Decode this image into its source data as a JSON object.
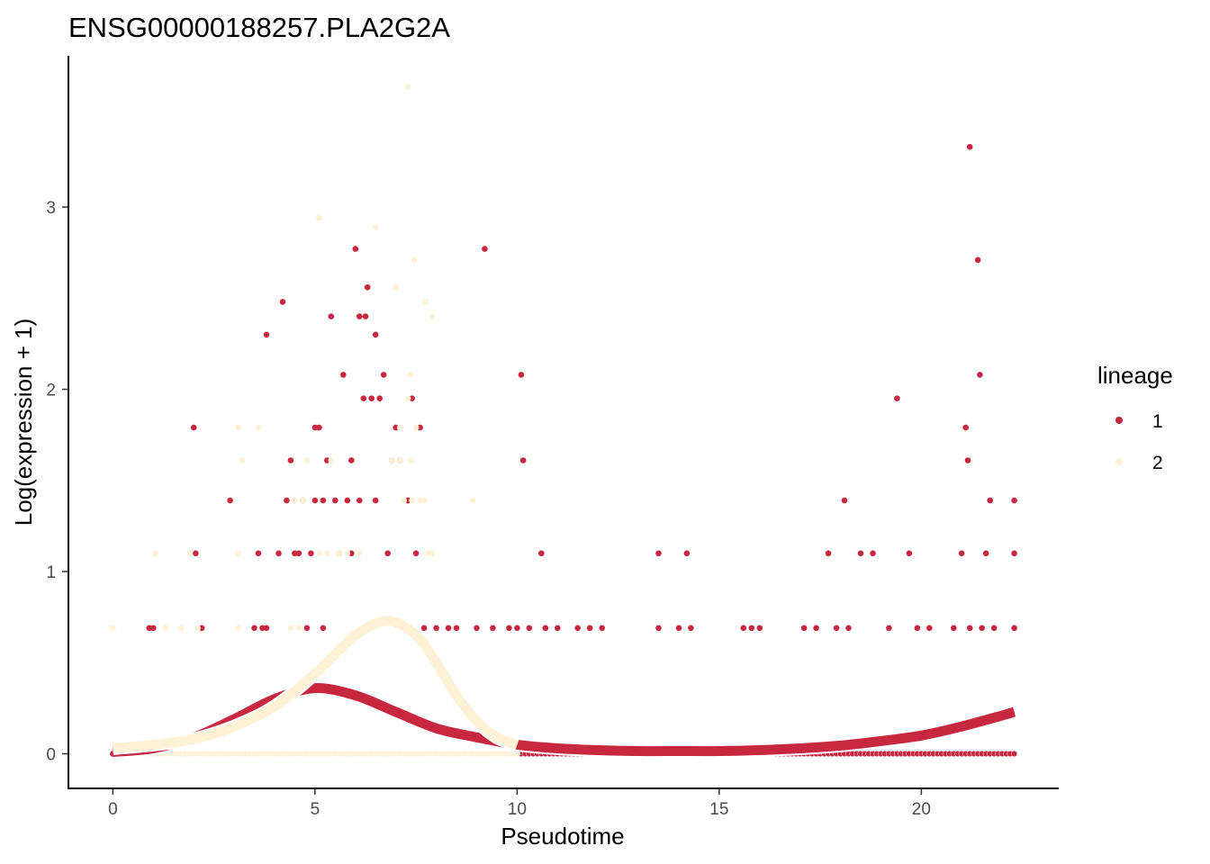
{
  "chart_data": {
    "type": "scatter",
    "title": "ENSG00000188257.PLA2G2A",
    "xlabel": "Pseudotime",
    "ylabel": "Log(expression + 1)",
    "xlim": [
      -1.1,
      23.4
    ],
    "ylim": [
      -0.19,
      3.83
    ],
    "xticks": [
      0,
      5,
      10,
      15,
      20
    ],
    "yticks": [
      0,
      1,
      2,
      3
    ],
    "grid": false,
    "legend": {
      "title": "lineage",
      "placement": "right",
      "entries": [
        {
          "label": "1",
          "color": "#C8283F"
        },
        {
          "label": "2",
          "color": "#FFF1D6"
        }
      ]
    },
    "series": [
      {
        "name": "1",
        "color": "#C8283F",
        "points": [
          [
            0,
            0
          ],
          [
            0.9,
            0.69
          ],
          [
            1.0,
            0.69
          ],
          [
            2.0,
            1.79
          ],
          [
            2.05,
            1.1
          ],
          [
            2.2,
            0.69
          ],
          [
            2.9,
            1.39
          ],
          [
            3.5,
            0.69
          ],
          [
            3.6,
            1.1
          ],
          [
            3.7,
            0.69
          ],
          [
            3.8,
            0.69
          ],
          [
            3.8,
            2.3
          ],
          [
            4.1,
            1.1
          ],
          [
            4.2,
            2.48
          ],
          [
            4.3,
            1.39
          ],
          [
            4.4,
            1.61
          ],
          [
            4.5,
            1.1
          ],
          [
            4.6,
            1.1
          ],
          [
            4.7,
            1.39
          ],
          [
            4.8,
            0.69
          ],
          [
            4.9,
            1.1
          ],
          [
            5.0,
            1.79
          ],
          [
            5.0,
            1.39
          ],
          [
            5.1,
            1.79
          ],
          [
            5.2,
            1.39
          ],
          [
            5.2,
            0.69
          ],
          [
            5.3,
            1.61
          ],
          [
            5.4,
            2.4
          ],
          [
            5.5,
            1.39
          ],
          [
            5.6,
            1.1
          ],
          [
            5.7,
            2.08
          ],
          [
            5.8,
            1.39
          ],
          [
            5.9,
            1.1
          ],
          [
            5.9,
            1.61
          ],
          [
            6.0,
            2.77
          ],
          [
            6.1,
            2.4
          ],
          [
            6.1,
            1.39
          ],
          [
            6.2,
            1.95
          ],
          [
            6.25,
            2.4
          ],
          [
            6.3,
            2.56
          ],
          [
            6.4,
            1.95
          ],
          [
            6.5,
            1.39
          ],
          [
            6.5,
            2.3
          ],
          [
            6.6,
            1.95
          ],
          [
            6.7,
            2.08
          ],
          [
            6.8,
            1.1
          ],
          [
            6.9,
            1.61
          ],
          [
            7.0,
            1.79
          ],
          [
            7.1,
            1.61
          ],
          [
            7.2,
            0.69
          ],
          [
            7.3,
            1.39
          ],
          [
            7.4,
            1.95
          ],
          [
            7.5,
            1.1
          ],
          [
            7.6,
            1.79
          ],
          [
            7.7,
            0.69
          ],
          [
            8.0,
            0.69
          ],
          [
            8.3,
            0.69
          ],
          [
            8.5,
            0.69
          ],
          [
            9.0,
            0.69
          ],
          [
            9.2,
            2.77
          ],
          [
            9.4,
            0.69
          ],
          [
            9.8,
            0.69
          ],
          [
            10.0,
            0.69
          ],
          [
            10.1,
            2.08
          ],
          [
            10.15,
            1.61
          ],
          [
            10.3,
            0.69
          ],
          [
            10.6,
            1.1
          ],
          [
            10.7,
            0.69
          ],
          [
            11.0,
            0.69
          ],
          [
            11.5,
            0.69
          ],
          [
            11.8,
            0.69
          ],
          [
            12.1,
            0.69
          ],
          [
            13.5,
            1.1
          ],
          [
            13.5,
            0.69
          ],
          [
            14.0,
            0.69
          ],
          [
            14.2,
            1.1
          ],
          [
            14.3,
            0.69
          ],
          [
            15.6,
            0.69
          ],
          [
            15.8,
            0.69
          ],
          [
            16.0,
            0.69
          ],
          [
            17.1,
            0.69
          ],
          [
            17.4,
            0.69
          ],
          [
            17.7,
            1.1
          ],
          [
            17.9,
            0.69
          ],
          [
            18.1,
            1.39
          ],
          [
            18.2,
            0.69
          ],
          [
            18.5,
            1.1
          ],
          [
            18.8,
            1.1
          ],
          [
            19.2,
            0.69
          ],
          [
            19.4,
            1.95
          ],
          [
            19.7,
            1.1
          ],
          [
            19.9,
            0.69
          ],
          [
            20.2,
            0.69
          ],
          [
            20.8,
            0.69
          ],
          [
            21.0,
            1.1
          ],
          [
            21.1,
            1.79
          ],
          [
            21.15,
            1.61
          ],
          [
            21.2,
            0.69
          ],
          [
            21.2,
            3.33
          ],
          [
            21.4,
            2.71
          ],
          [
            21.45,
            2.08
          ],
          [
            21.5,
            0.69
          ],
          [
            21.6,
            1.1
          ],
          [
            21.7,
            1.39
          ],
          [
            21.8,
            0.69
          ],
          [
            22.3,
            1.39
          ],
          [
            22.3,
            1.1
          ],
          [
            22.3,
            0.69
          ]
        ]
      },
      {
        "name": "2",
        "color": "#FFF1D6",
        "points": [
          [
            0,
            0.69
          ],
          [
            0.5,
            0
          ],
          [
            1.05,
            1.1
          ],
          [
            1.3,
            0.69
          ],
          [
            1.7,
            0.69
          ],
          [
            1.9,
            1.1
          ],
          [
            2.1,
            0.69
          ],
          [
            3.1,
            1.79
          ],
          [
            3.2,
            1.61
          ],
          [
            3.1,
            1.1
          ],
          [
            3.1,
            0.69
          ],
          [
            3.6,
            1.79
          ],
          [
            4.4,
            0.69
          ],
          [
            4.5,
            1.39
          ],
          [
            4.6,
            0.69
          ],
          [
            4.7,
            1.39
          ],
          [
            4.8,
            1.61
          ],
          [
            5.1,
            1.1
          ],
          [
            5.1,
            2.94
          ],
          [
            5.3,
            1.1
          ],
          [
            5.4,
            1.61
          ],
          [
            5.6,
            1.1
          ],
          [
            5.8,
            1.1
          ],
          [
            6.1,
            1.1
          ],
          [
            6.5,
            2.89
          ],
          [
            6.9,
            1.61
          ],
          [
            7.0,
            2.56
          ],
          [
            7.1,
            1.61
          ],
          [
            7.1,
            1.79
          ],
          [
            7.2,
            1.39
          ],
          [
            7.3,
            1.95
          ],
          [
            7.3,
            3.66
          ],
          [
            7.35,
            2.08
          ],
          [
            7.4,
            1.61
          ],
          [
            7.4,
            1.39
          ],
          [
            7.45,
            2.71
          ],
          [
            7.5,
            1.79
          ],
          [
            7.6,
            1.39
          ],
          [
            7.7,
            1.39
          ],
          [
            7.75,
            2.48
          ],
          [
            7.8,
            1.1
          ],
          [
            7.9,
            2.4
          ],
          [
            7.9,
            1.1
          ],
          [
            8.9,
            1.39
          ]
        ]
      }
    ],
    "zero_rows": [
      {
        "series": "1",
        "range": [
          0,
          22.3
        ],
        "y": 0
      },
      {
        "series": "2",
        "range": [
          0.3,
          10.0
        ],
        "y": 0
      }
    ],
    "fitted_curves": [
      {
        "series": "1",
        "color": "#C8283F",
        "points": [
          [
            0,
            0.01
          ],
          [
            1,
            0.03
          ],
          [
            2,
            0.09
          ],
          [
            3,
            0.19
          ],
          [
            4,
            0.3
          ],
          [
            5,
            0.36
          ],
          [
            6,
            0.32
          ],
          [
            7,
            0.23
          ],
          [
            8,
            0.14
          ],
          [
            9,
            0.09
          ],
          [
            10,
            0.05
          ],
          [
            11,
            0.03
          ],
          [
            12,
            0.02
          ],
          [
            13,
            0.015
          ],
          [
            14,
            0.015
          ],
          [
            15,
            0.015
          ],
          [
            16,
            0.02
          ],
          [
            17,
            0.03
          ],
          [
            18,
            0.045
          ],
          [
            19,
            0.07
          ],
          [
            20,
            0.1
          ],
          [
            21,
            0.15
          ],
          [
            22,
            0.21
          ],
          [
            22.3,
            0.23
          ]
        ]
      },
      {
        "series": "2",
        "color": "#FFF1D6",
        "points": [
          [
            0,
            0.03
          ],
          [
            1,
            0.05
          ],
          [
            2,
            0.08
          ],
          [
            3,
            0.15
          ],
          [
            4,
            0.26
          ],
          [
            5,
            0.44
          ],
          [
            6,
            0.65
          ],
          [
            6.8,
            0.73
          ],
          [
            7.5,
            0.65
          ],
          [
            8,
            0.5
          ],
          [
            8.5,
            0.32
          ],
          [
            9,
            0.18
          ],
          [
            9.5,
            0.09
          ],
          [
            10,
            0.05
          ]
        ]
      }
    ]
  }
}
